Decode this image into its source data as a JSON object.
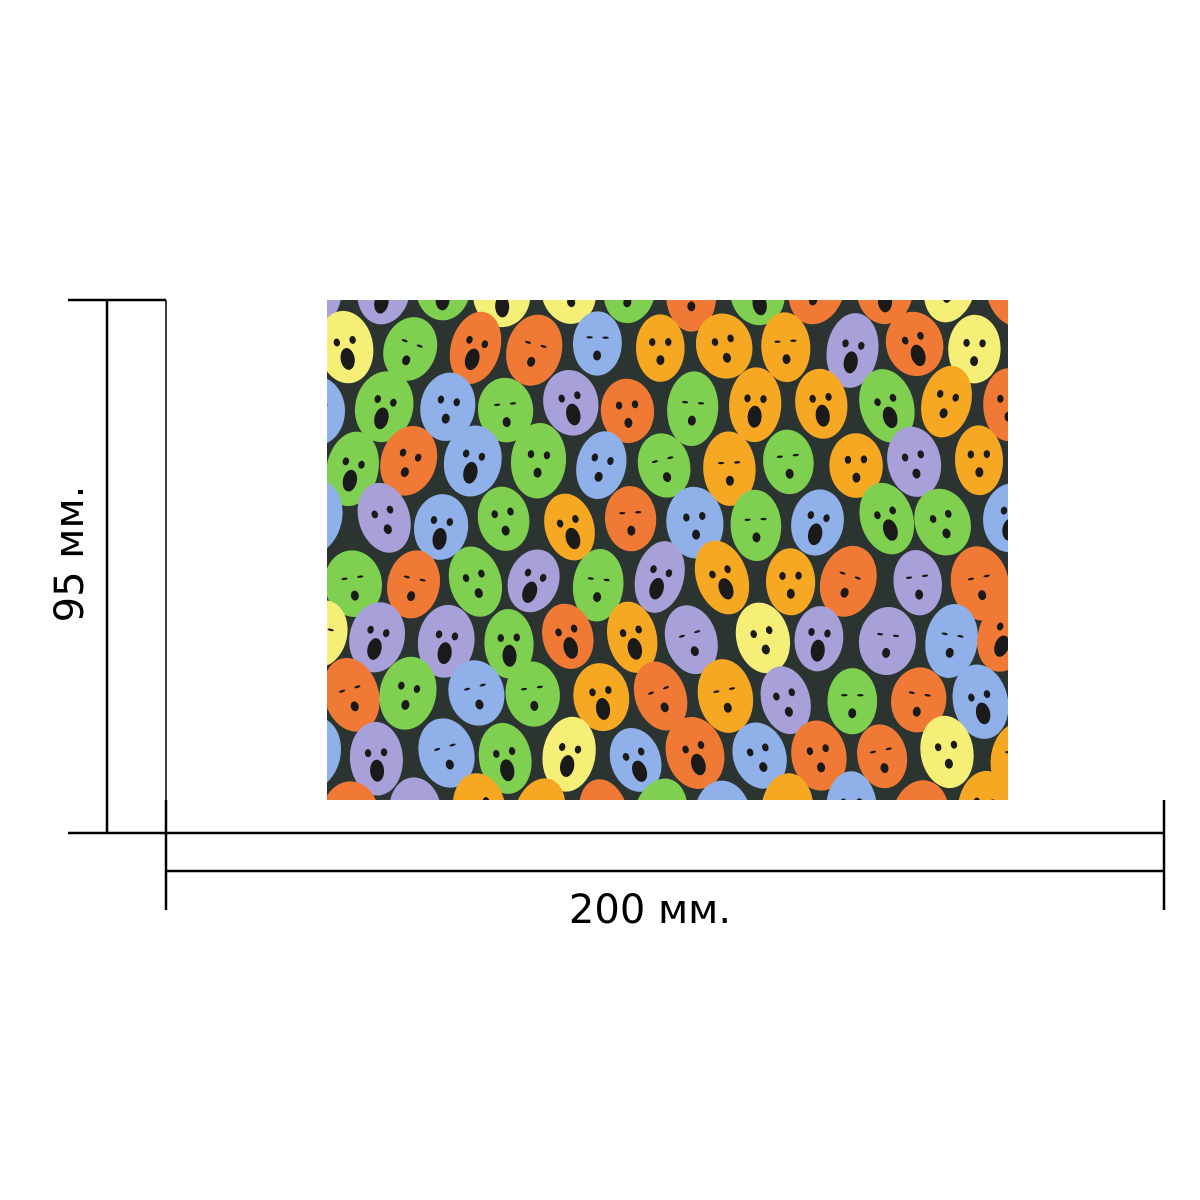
{
  "dimensions": {
    "width_label": "200 мм.",
    "height_label": "95 мм."
  },
  "artwork": {
    "description_icon": "screaming-faces-painting",
    "background_color": "#2b3430",
    "palette": [
      "#f7a823",
      "#f07a35",
      "#7fcf50",
      "#a8a0d8",
      "#8fb0e8",
      "#f5ef78"
    ]
  }
}
